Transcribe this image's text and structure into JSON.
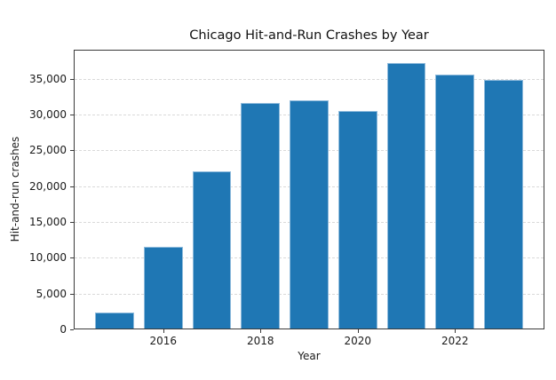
{
  "chart_data": {
    "type": "bar",
    "title": "Chicago Hit-and-Run Crashes by Year",
    "xlabel": "Year",
    "ylabel": "Hit-and-run crashes",
    "categories": [
      2015,
      2016,
      2017,
      2018,
      2019,
      2020,
      2021,
      2022,
      2023
    ],
    "values": [
      2300,
      11500,
      22100,
      31600,
      32000,
      30500,
      37200,
      35600,
      34900
    ],
    "bar_width_years": 0.8,
    "xlim": [
      2014.16,
      2023.84
    ],
    "ylim": [
      0,
      39080
    ],
    "x_ticks": [
      {
        "value": 2016,
        "label": "2016"
      },
      {
        "value": 2018,
        "label": "2018"
      },
      {
        "value": 2020,
        "label": "2020"
      },
      {
        "value": 2022,
        "label": "2022"
      }
    ],
    "y_ticks": [
      {
        "value": 0,
        "label": "0"
      },
      {
        "value": 5000,
        "label": "5,000"
      },
      {
        "value": 10000,
        "label": "10,000"
      },
      {
        "value": 15000,
        "label": "15,000"
      },
      {
        "value": 20000,
        "label": "20,000"
      },
      {
        "value": 25000,
        "label": "25,000"
      },
      {
        "value": 30000,
        "label": "30,000"
      },
      {
        "value": 35000,
        "label": "35,000"
      }
    ],
    "grid": {
      "axis": "y",
      "style": "dashed",
      "color": "#d9d9d9"
    },
    "legend": null,
    "colors": {
      "bar": "#1f77b4",
      "bar_edge": "#8fbbdc",
      "spine": "#3a3a3a",
      "text": "#1a1a1a",
      "background": "#ffffff"
    }
  }
}
